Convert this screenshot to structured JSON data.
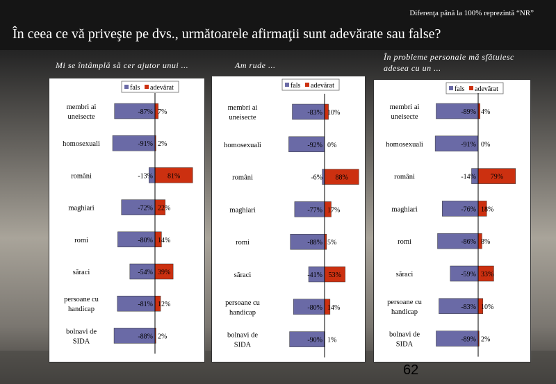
{
  "header": {
    "note": "Diferenţa până la 100% reprezintă  “NR”",
    "title": "În ceea ce vă priveşte pe dvs., următoarele afirmaţii sunt adevărate sau false?"
  },
  "page_number": "62",
  "colors": {
    "fals": "#6a6aa6",
    "adevarat": "#cc3010"
  },
  "chart_data": [
    {
      "type": "bar",
      "title": "Mi se întâmplă să cer ajutor unui ...",
      "categories": [
        "membri ai uneisecte",
        "homosexuali",
        "români",
        "maghiari",
        "romi",
        "săraci",
        "persoane cu handicap",
        "bolnavi de SIDA"
      ],
      "series": [
        {
          "name": "fals",
          "values": [
            -87,
            -91,
            -13,
            -72,
            -80,
            -54,
            -81,
            -88
          ],
          "labels": [
            "-87%",
            "-91%",
            "-13%",
            "-72%",
            "-80%",
            "-54%",
            "-81%",
            "-88%"
          ]
        },
        {
          "name": "adevărat",
          "values": [
            7,
            2,
            81,
            22,
            14,
            39,
            12,
            2
          ],
          "labels": [
            "7%",
            "2%",
            "81%",
            "22%",
            "14%",
            "39%",
            "12%",
            "2%"
          ]
        }
      ],
      "legend": [
        "fals",
        "adevărat"
      ],
      "legend_position": "top"
    },
    {
      "type": "bar",
      "title": "Am rude ...",
      "categories": [
        "membri ai uneisecte",
        "homosexuali",
        "români",
        "maghiari",
        "romi",
        "săraci",
        "persoane cu handicap",
        "bolnavi de SIDA"
      ],
      "series": [
        {
          "name": "fals",
          "values": [
            -83,
            -92,
            -6,
            -77,
            -88,
            -41,
            -80,
            -90
          ],
          "labels": [
            "-83%",
            "-92%",
            "-6%",
            "-77%",
            "-88%",
            "-41%",
            "-80%",
            "-90%"
          ]
        },
        {
          "name": "adevărat",
          "values": [
            10,
            0,
            88,
            17,
            5,
            53,
            14,
            1
          ],
          "labels": [
            "10%",
            "0%",
            "88%",
            "17%",
            "5%",
            "53%",
            "14%",
            "1%"
          ]
        }
      ],
      "legend": [
        "fals",
        "adevărat"
      ],
      "legend_position": "top"
    },
    {
      "type": "bar",
      "title": "În probleme personale mă sfătuiesc adesea cu un ...",
      "categories": [
        "membri ai uneisecte",
        "homosexuali",
        "români",
        "maghiari",
        "romi",
        "săraci",
        "persoane cu handicap",
        "bolnavi de SIDA"
      ],
      "series": [
        {
          "name": "fals",
          "values": [
            -89,
            -91,
            -14,
            -76,
            -86,
            -59,
            -83,
            -89
          ],
          "labels": [
            "-89%",
            "-91%",
            "-14%",
            "-76%",
            "-86%",
            "-59%",
            "-83%",
            "-89%"
          ]
        },
        {
          "name": "adevărat",
          "values": [
            4,
            0,
            79,
            18,
            8,
            33,
            10,
            2
          ],
          "labels": [
            "4%",
            "0%",
            "79%",
            "18%",
            "8%",
            "33%",
            "10%",
            "2%"
          ]
        }
      ],
      "legend": [
        "fals",
        "adevărat"
      ],
      "legend_position": "top"
    }
  ]
}
